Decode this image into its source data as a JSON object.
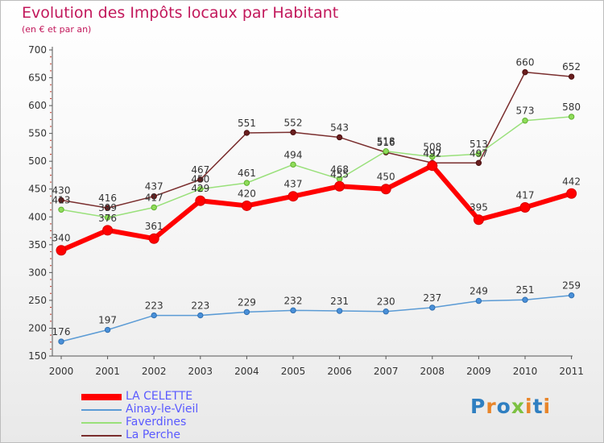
{
  "chart_data": {
    "type": "line",
    "title": "Evolution des Impôts locaux par Habitant",
    "subtitle": "(en € et par an)",
    "xlabel": "",
    "ylabel": "",
    "categories": [
      "2000",
      "2001",
      "2002",
      "2003",
      "2004",
      "2005",
      "2006",
      "2007",
      "2008",
      "2009",
      "2010",
      "2011"
    ],
    "ylim": [
      150,
      700
    ],
    "yticks": [
      150,
      200,
      250,
      300,
      350,
      400,
      450,
      500,
      550,
      600,
      650,
      700
    ],
    "grid": false,
    "legend_position": "bottom-left",
    "series": [
      {
        "name": "LA CELETTE",
        "color": "#ff0000",
        "values": [
          340,
          376,
          361,
          429,
          420,
          437,
          455,
          450,
          492,
          395,
          417,
          442
        ]
      },
      {
        "name": "Ainay-le-Vieil",
        "color": "#5b9bd5",
        "values": [
          176,
          197,
          223,
          223,
          229,
          232,
          231,
          230,
          237,
          249,
          251,
          259
        ]
      },
      {
        "name": "Faverdines",
        "color": "#99e07a",
        "values": [
          413,
          399,
          417,
          450,
          461,
          494,
          468,
          518,
          508,
          513,
          573,
          580
        ]
      },
      {
        "name": "La Perche",
        "color": "#7a2e2e",
        "values": [
          430,
          416,
          437,
          467,
          551,
          552,
          543,
          516,
          497,
          497,
          660,
          652
        ]
      }
    ]
  },
  "logo": {
    "text": "Proxiti",
    "letters": [
      "P",
      "r",
      "o",
      "x",
      "i",
      "t",
      "i"
    ],
    "colors": [
      "#2f7fc1",
      "#e8852a",
      "#2f7fc1",
      "#7dc142",
      "#e8852a",
      "#2f7fc1",
      "#e8852a"
    ]
  }
}
